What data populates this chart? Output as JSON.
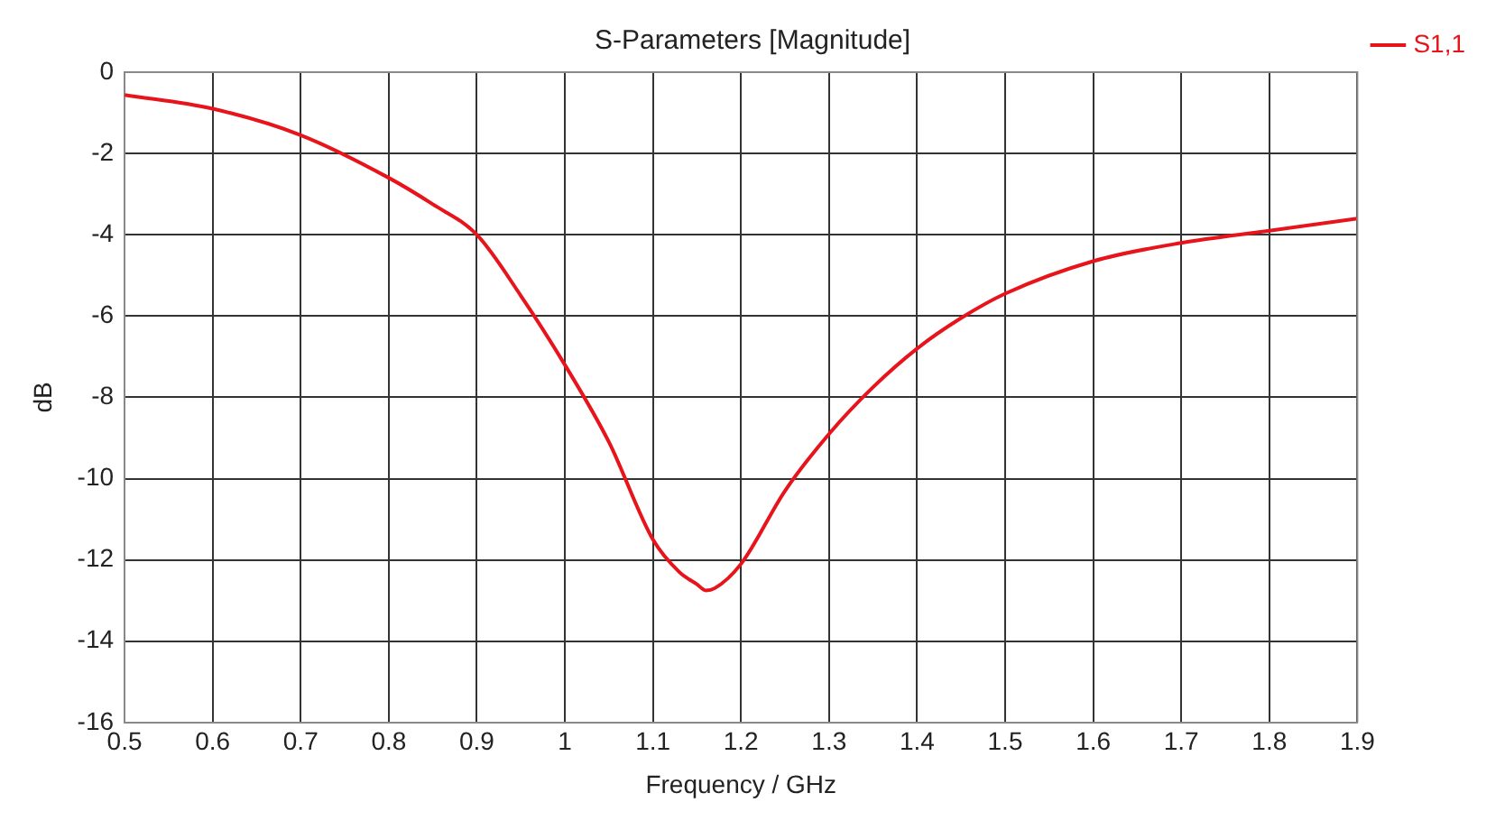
{
  "chart_data": {
    "type": "line",
    "title": "S-Parameters [Magnitude]",
    "xlabel": "Frequency / GHz",
    "ylabel": "dB",
    "x": [
      0.5,
      0.6,
      0.7,
      0.8,
      0.85,
      0.9,
      0.95,
      1.0,
      1.05,
      1.1,
      1.13,
      1.15,
      1.16,
      1.17,
      1.2,
      1.25,
      1.3,
      1.35,
      1.4,
      1.45,
      1.5,
      1.6,
      1.7,
      1.8,
      1.9
    ],
    "series": [
      {
        "name": "S1,1",
        "color": "#e8141c",
        "values": [
          -0.56,
          -0.9,
          -1.55,
          -2.6,
          -3.25,
          -4.0,
          -5.5,
          -7.2,
          -9.1,
          -11.5,
          -12.3,
          -12.6,
          -12.75,
          -12.7,
          -12.1,
          -10.3,
          -8.9,
          -7.75,
          -6.8,
          -6.05,
          -5.45,
          -4.65,
          -4.2,
          -3.9,
          -3.6
        ]
      }
    ],
    "xlim": [
      0.5,
      1.9
    ],
    "xticks": [
      0.5,
      0.6,
      0.7,
      0.8,
      0.9,
      1,
      1.1,
      1.2,
      1.3,
      1.4,
      1.5,
      1.6,
      1.7,
      1.8,
      1.9
    ],
    "ylim": [
      -16,
      0
    ],
    "yticks": [
      -16,
      -14,
      -12,
      -10,
      -8,
      -6,
      -4,
      -2,
      0
    ],
    "grid": true,
    "legend": "top right",
    "marker": "none",
    "line_style": "solid"
  }
}
